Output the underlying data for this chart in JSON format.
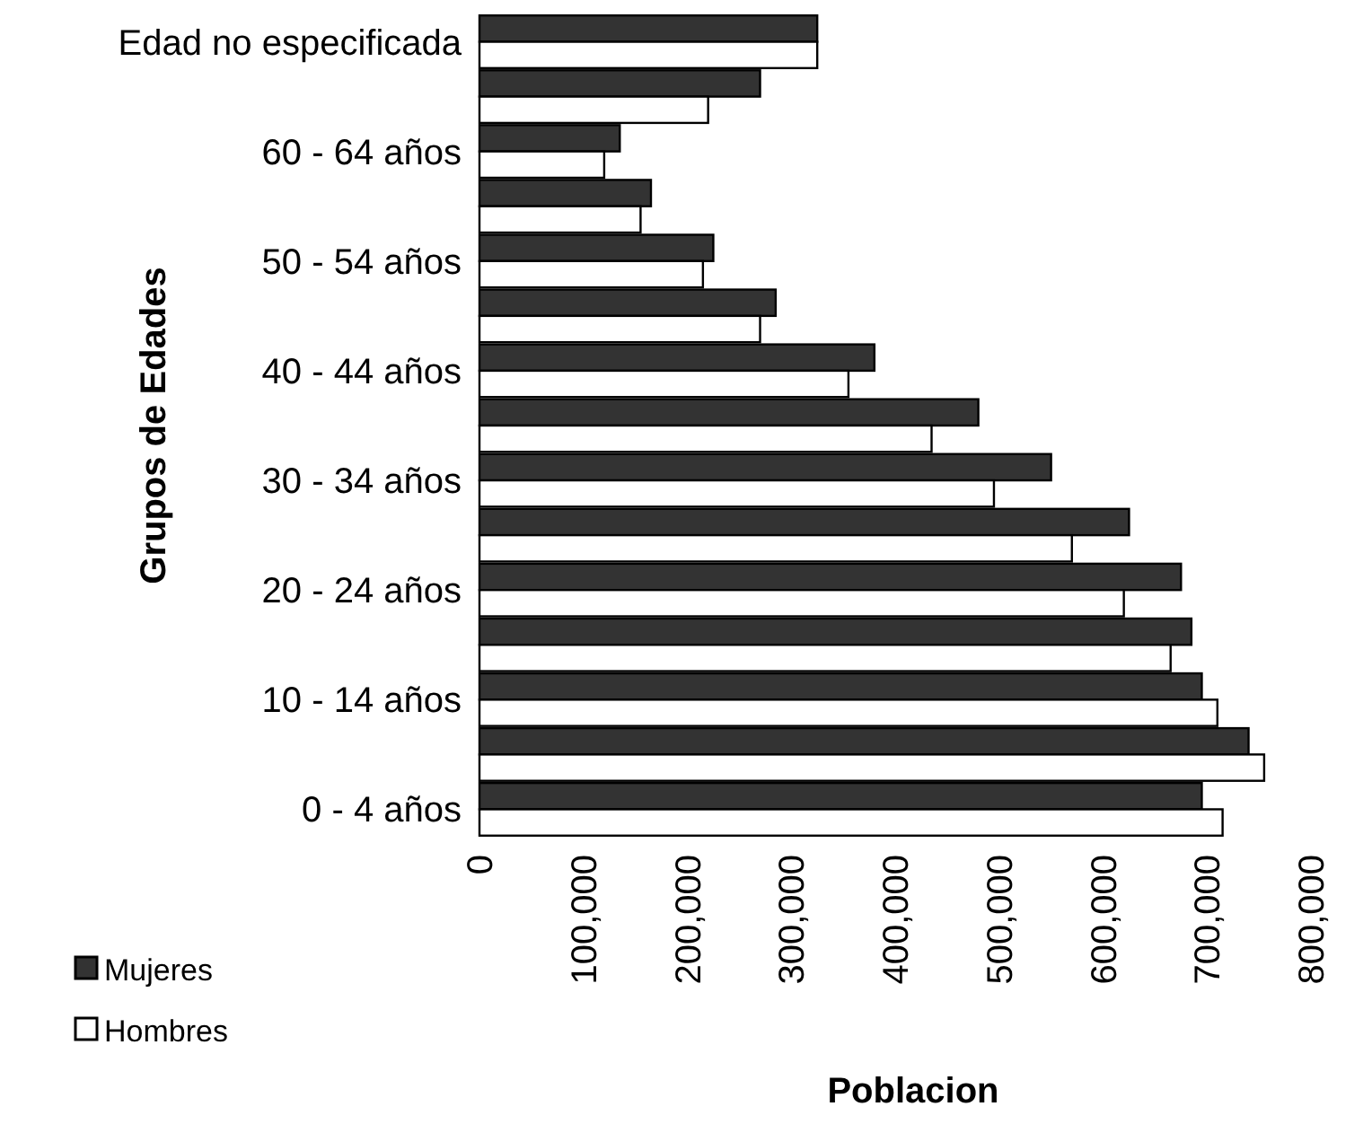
{
  "chart_data": {
    "type": "bar",
    "orientation": "horizontal",
    "xlabel": "Poblacion",
    "ylabel": "Grupos de Edades",
    "categories": [
      "Edad no especificada",
      null,
      "60 - 64 años",
      null,
      "50 - 54 años",
      null,
      "40 - 44 años",
      null,
      "30 - 34 años",
      null,
      "20 - 24 años",
      null,
      "10 - 14 años",
      null,
      "0 - 4 años"
    ],
    "series": [
      {
        "name": "Mujeres",
        "color": "#333333",
        "values": [
          325000,
          270000,
          135000,
          165000,
          225000,
          285000,
          380000,
          480000,
          550000,
          625000,
          675000,
          685000,
          695000,
          740000,
          695000
        ]
      },
      {
        "name": "Hombres",
        "color": "#ffffff",
        "values": [
          325000,
          220000,
          120000,
          155000,
          215000,
          270000,
          355000,
          435000,
          495000,
          570000,
          620000,
          665000,
          710000,
          755000,
          715000
        ]
      }
    ],
    "xlim": [
      0,
      800000
    ],
    "xticks": [
      0,
      {
        "value": 100000,
        "label": "100,000"
      },
      {
        "value": 200000,
        "label": "200,000"
      },
      {
        "value": 300000,
        "label": "300,000"
      },
      {
        "value": 400000,
        "label": "400,000"
      },
      {
        "value": 500000,
        "label": "500,000"
      },
      {
        "value": 600000,
        "label": "600,000"
      },
      {
        "value": 700000,
        "label": "700,000"
      },
      {
        "value": 800000,
        "label": "800,000"
      }
    ],
    "grid": false,
    "legend": "bottom left"
  }
}
